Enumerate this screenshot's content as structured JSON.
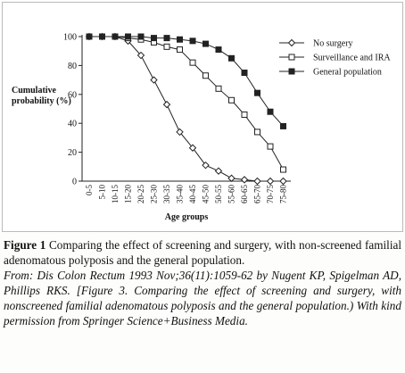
{
  "chart_data": {
    "type": "line",
    "x_label": "Age groups",
    "y_label": "Cumulative probability (%)",
    "categories": [
      "0-5",
      "5-10",
      "10-15",
      "15-20",
      "20-25",
      "25-30",
      "30-35",
      "35-40",
      "40-45",
      "45-50",
      "50-55",
      "55-60",
      "60-65",
      "65-70",
      "70-75",
      "75-80"
    ],
    "series": [
      {
        "name": "No surgery",
        "color": "#222",
        "marker": "diamond-open",
        "values": [
          100,
          100,
          100,
          97,
          87,
          70,
          53,
          34,
          23,
          11,
          7,
          2,
          1,
          0,
          0,
          0
        ]
      },
      {
        "name": "Surveillance and IRA",
        "color": "#222",
        "marker": "square-open",
        "values": [
          100,
          100,
          100,
          99,
          98,
          96,
          93,
          91,
          82,
          73,
          64,
          56,
          46,
          34,
          24,
          8
        ]
      },
      {
        "name": "General population",
        "color": "#222",
        "marker": "square-filled",
        "values": [
          100,
          100,
          100,
          100,
          100,
          99,
          99,
          98,
          97,
          95,
          91,
          85,
          75,
          61,
          48,
          38
        ]
      }
    ],
    "ylim": [
      0,
      100
    ],
    "yticks": [
      0,
      20,
      40,
      60,
      80,
      100
    ],
    "grid": false,
    "legend": "top-right"
  },
  "caption": {
    "label": "Figure 1",
    "text": "Comparing the effect of screening and surgery, with non-screened familial adenomatous polyposis and the general population.",
    "source": "From: Dis Colon Rectum 1993 Nov;36(11):1059-62 by Nugent KP, Spigelman AD, Phillips RKS. [Figure 3. Comparing the effect of screening and surgery, with nonscreened familial adenomatous polyposis and the general population.) With kind permission from Springer Science+Business Media."
  }
}
